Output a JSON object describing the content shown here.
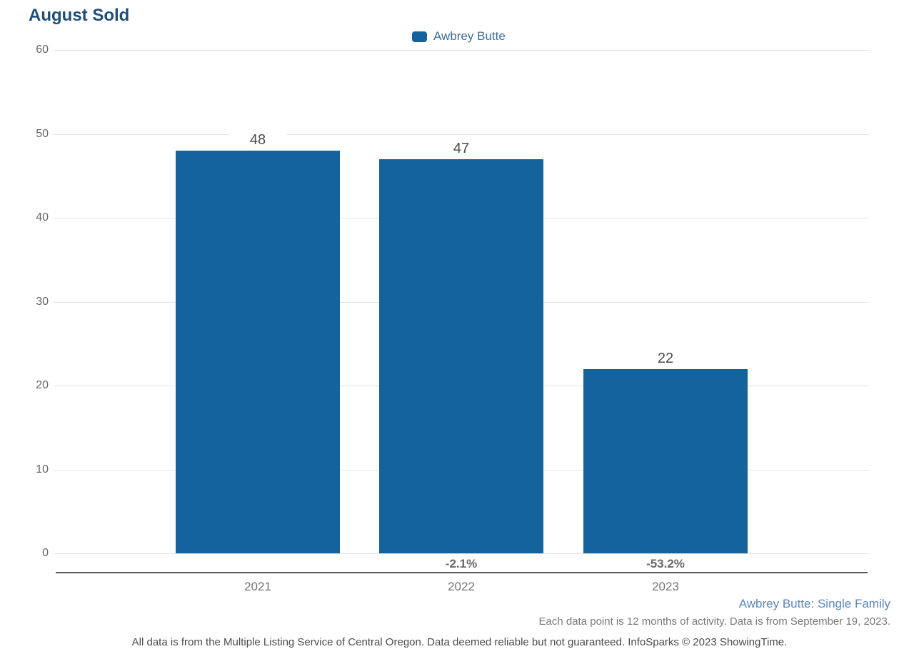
{
  "title": "August Sold",
  "legend": {
    "label": "Awbrey Butte",
    "swatch_color": "#15639c"
  },
  "chart_data": {
    "type": "bar",
    "title": "August Sold",
    "series_name": "Awbrey Butte",
    "categories": [
      "2021",
      "2022",
      "2023"
    ],
    "values": [
      48,
      47,
      22
    ],
    "pct_change": [
      "",
      "-2.1%",
      "-53.2%"
    ],
    "xlabel": "",
    "ylabel": "",
    "ylim": [
      0,
      60
    ],
    "yticks": [
      0,
      10,
      20,
      30,
      40,
      50,
      60
    ],
    "grid": true,
    "legend_position": "top-center",
    "bar_color": "#15639c",
    "gridline_color": "#e3e3e3",
    "axis_line_color": "#58595b"
  },
  "footnotes": {
    "segment": "Awbrey Butte: Single Family",
    "data_note": "Each data point is 12 months of activity. Data is from September 19, 2023.",
    "disclaimer": "All data is from the Multiple Listing Service of Central Oregon. Data deemed reliable but not guaranteed. InfoSparks © 2023 ShowingTime."
  },
  "colors": {
    "title": "#1f4e79",
    "legend_text": "#3d6d94",
    "value_label": "#4a4a4a",
    "pct_label": "#696969",
    "tick_label": "#666666",
    "segment_text": "#5b86bb"
  }
}
